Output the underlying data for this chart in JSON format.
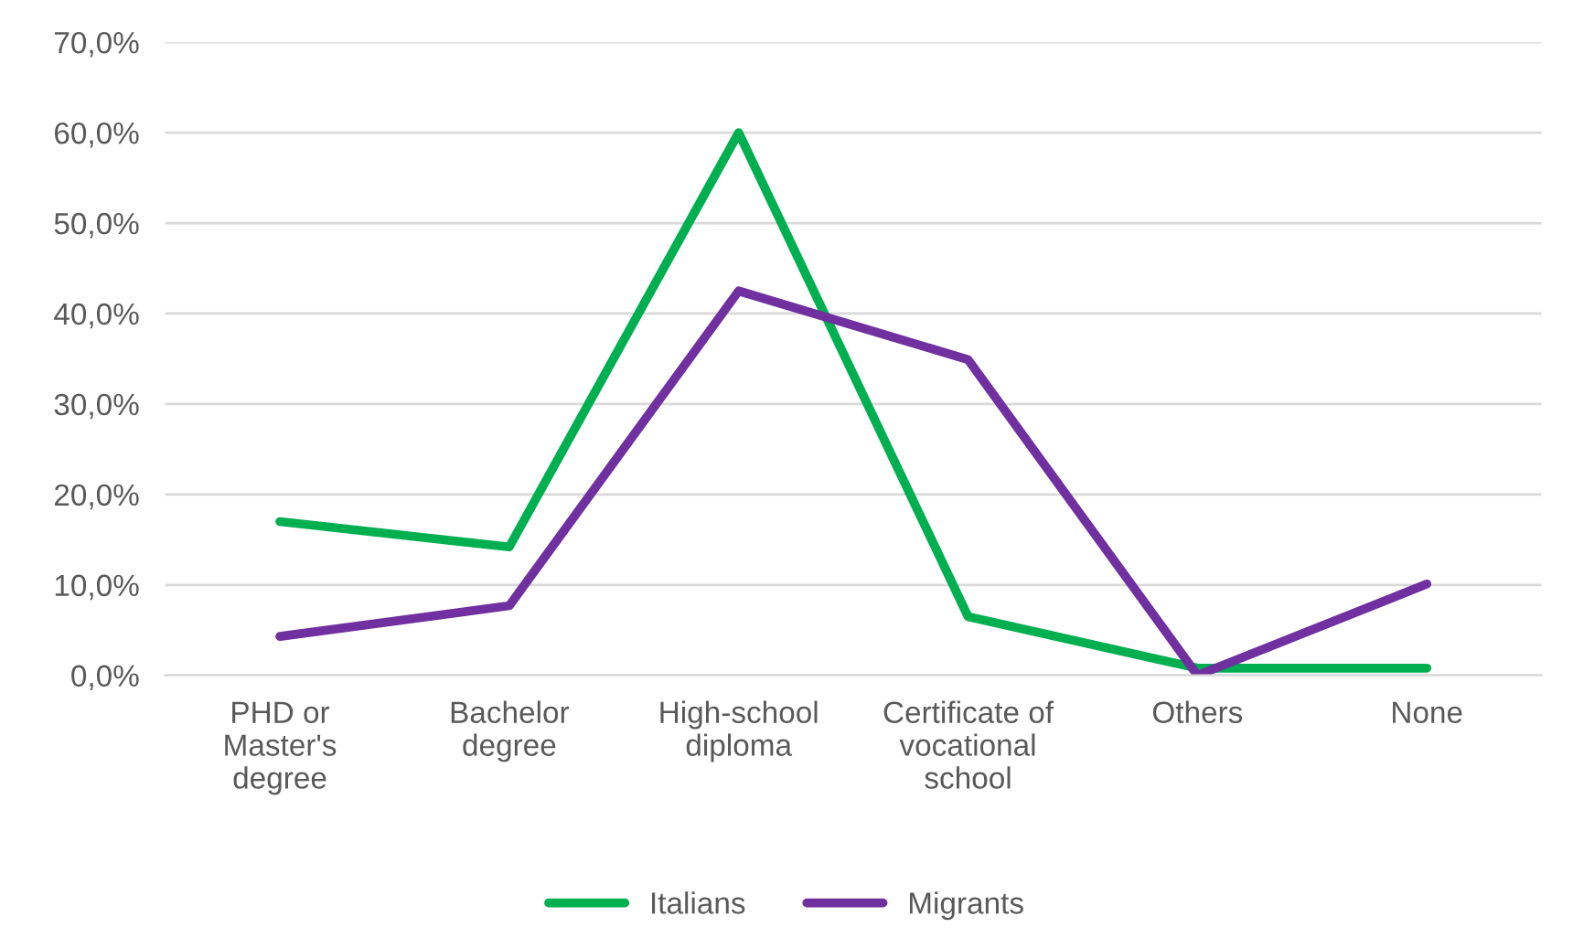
{
  "chart_data": {
    "type": "line",
    "categories": [
      "PHD or\nMaster's\ndegree",
      "Bachelor\ndegree",
      "High-school\ndiploma",
      "Certificate of\nvocational\nschool",
      "Others",
      "None"
    ],
    "series": [
      {
        "name": "Italians",
        "color": "#00b050",
        "values": [
          17.0,
          14.2,
          60.0,
          6.5,
          0.8,
          0.8
        ]
      },
      {
        "name": "Migrants",
        "color": "#7030a0",
        "values": [
          4.3,
          7.7,
          42.5,
          34.9,
          0.0,
          10.1
        ]
      }
    ],
    "ylim": [
      0,
      70
    ],
    "yticks": [
      {
        "value": 0,
        "label": "0,0%"
      },
      {
        "value": 10,
        "label": "10,0%"
      },
      {
        "value": 20,
        "label": "20,0%"
      },
      {
        "value": 30,
        "label": "30,0%"
      },
      {
        "value": 40,
        "label": "40,0%"
      },
      {
        "value": 50,
        "label": "50,0%"
      },
      {
        "value": 60,
        "label": "60,0%"
      },
      {
        "value": 70,
        "label": "70,0%"
      }
    ],
    "grid": "y",
    "legend": "bottom",
    "marker": "none",
    "line_style": "solid"
  }
}
